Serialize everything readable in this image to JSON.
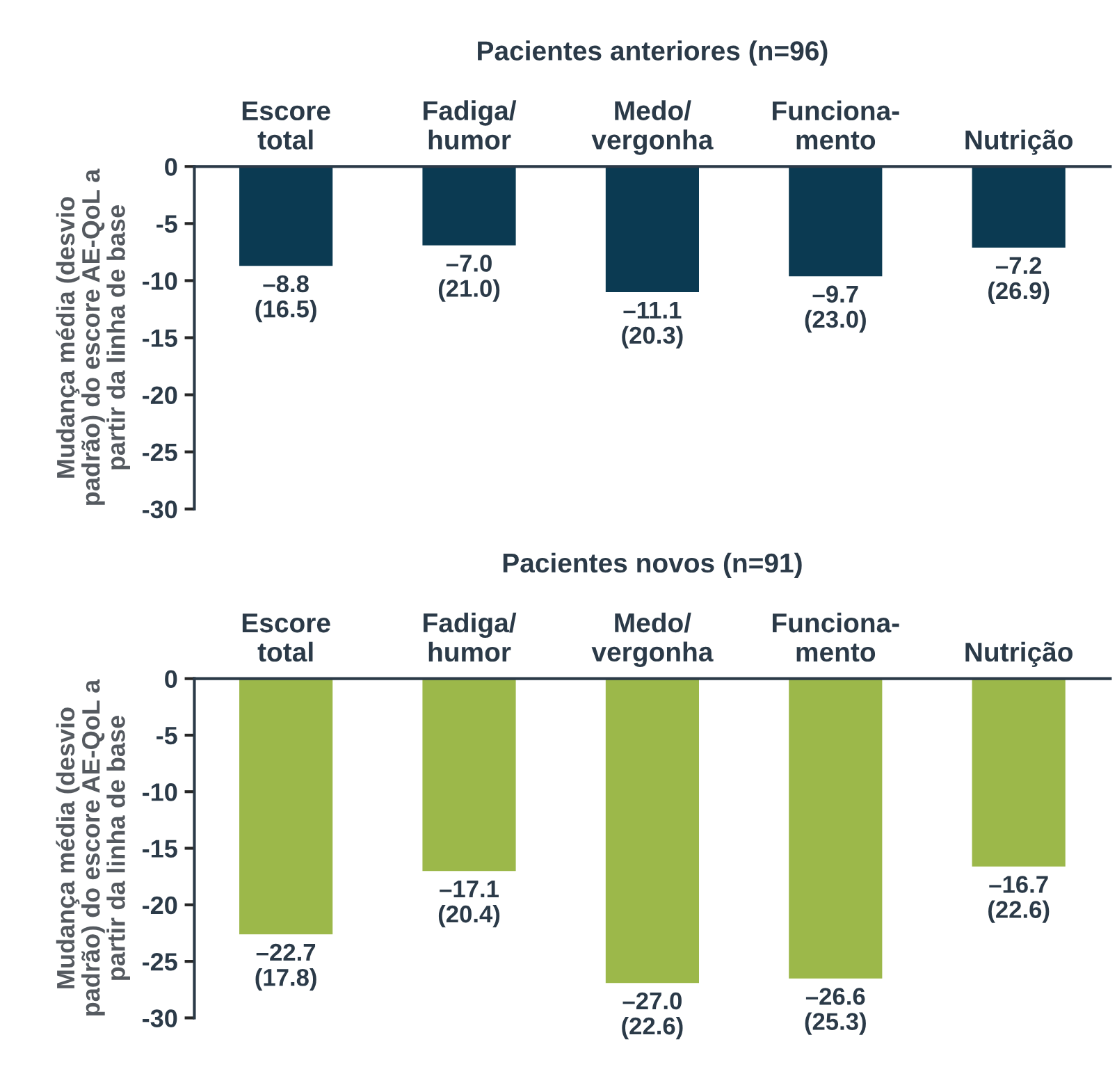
{
  "chart_data": [
    {
      "type": "bar",
      "title": "Pacientes anteriores (n=96)",
      "ylabel": "Mudança média (desvio\npadrão) do escore AE-QoL a\npartir da linha de base",
      "categories": [
        "Escore\ntotal",
        "Fadiga/\nhumor",
        "Medo/\nvergonha",
        "Funciona-\nmento",
        "Nutrição"
      ],
      "series": [
        {
          "color": "#0b3a52",
          "values": [
            -8.8,
            -7.0,
            -11.1,
            -9.7,
            -7.2
          ],
          "value_labels": [
            "–8.8\n(16.5)",
            "–7.0\n(21.0)",
            "–11.1\n(20.3)",
            "–9.7\n(23.0)",
            "–7.2\n(26.9)"
          ]
        }
      ],
      "ylim": [
        -30,
        0
      ],
      "yticks": [
        0,
        {
          "value": -5,
          "label": "-5"
        },
        {
          "value": -10,
          "label": "-10"
        },
        {
          "value": -15,
          "label": "-15"
        },
        {
          "value": -20,
          "label": "-20"
        },
        {
          "value": -25,
          "label": "-25"
        },
        {
          "value": -30,
          "label": "-30"
        }
      ],
      "grid": false
    },
    {
      "type": "bar",
      "title": "Pacientes novos (n=91)",
      "ylabel": "Mudança média (desvio\npadrão) do escore AE-QoL a\npartir da linha de base",
      "categories": [
        "Escore\ntotal",
        "Fadiga/\nhumor",
        "Medo/\nvergonha",
        "Funciona-\nmento",
        "Nutrição"
      ],
      "series": [
        {
          "color": "#9cb84a",
          "values": [
            -22.7,
            -17.1,
            -27.0,
            -26.6,
            -16.7
          ],
          "value_labels": [
            "–22.7\n(17.8)",
            "–17.1\n(20.4)",
            "–27.0\n(22.6)",
            "–26.6\n(25.3)",
            "–16.7\n(22.6)"
          ]
        }
      ],
      "ylim": [
        -30,
        0
      ],
      "yticks": [
        0,
        {
          "value": -5,
          "label": "-5"
        },
        {
          "value": -10,
          "label": "-10"
        },
        {
          "value": -15,
          "label": "-15"
        },
        {
          "value": -20,
          "label": "-20"
        },
        {
          "value": -25,
          "label": "-25"
        },
        {
          "value": -30,
          "label": "-30"
        }
      ],
      "grid": false
    }
  ]
}
